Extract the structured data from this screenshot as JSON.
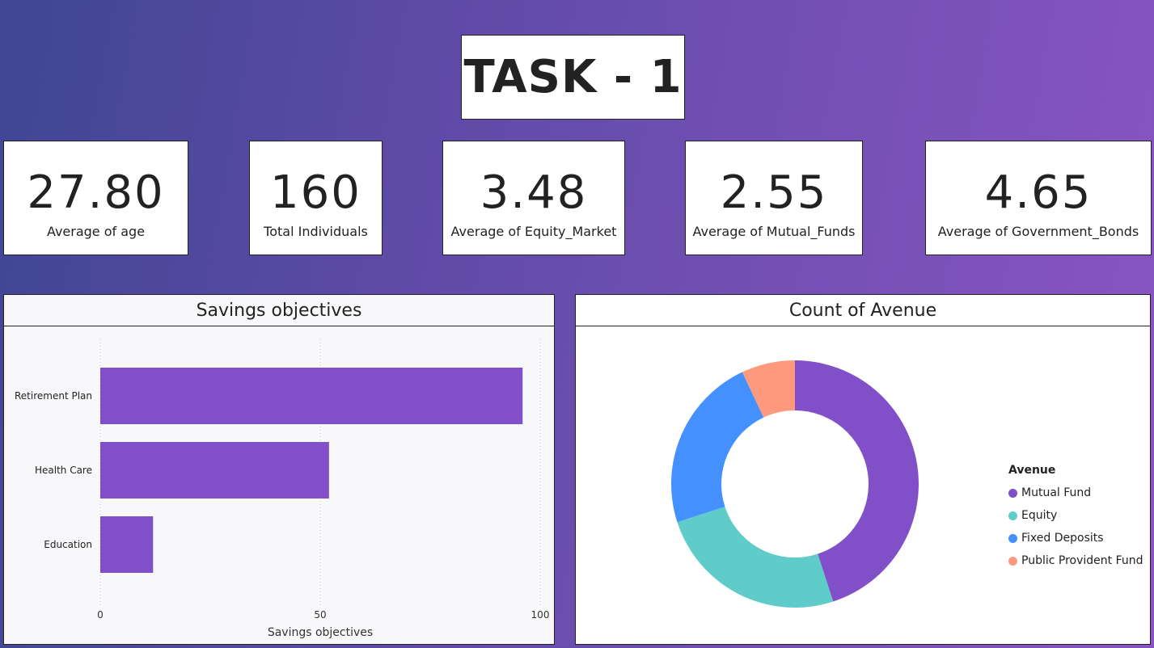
{
  "header": {
    "title": "TASK - 1"
  },
  "kpis": [
    {
      "value": "27.80",
      "label": "Average of age"
    },
    {
      "value": "160",
      "label": "Total Individuals"
    },
    {
      "value": "3.48",
      "label": "Average of Equity_Market"
    },
    {
      "value": "2.55",
      "label": "Average of Mutual_Funds"
    },
    {
      "value": "4.65",
      "label": "Average of Government_Bonds"
    }
  ],
  "chart_data": [
    {
      "type": "bar",
      "orientation": "horizontal",
      "title": "Savings objectives",
      "xlabel": "Savings objectives",
      "ylabel": "",
      "categories": [
        "Retirement Plan",
        "Health Care",
        "Education"
      ],
      "values": [
        96,
        52,
        12
      ],
      "xlim": [
        0,
        100
      ],
      "xticks": [
        "0",
        "50",
        "100"
      ],
      "color": "#8150c8",
      "grid": "vertical dotted"
    },
    {
      "type": "pie",
      "variant": "donut",
      "title": "Count of Avenue",
      "legend_title": "Avenue",
      "legend_position": "right",
      "categories": [
        "Mutual Fund",
        "Equity",
        "Fixed Deposits",
        "Public Provident Fund"
      ],
      "values": [
        45,
        25,
        23,
        7
      ],
      "colors": [
        "#8150c8",
        "#5fccc9",
        "#4590ff",
        "#fd9a7e"
      ]
    }
  ]
}
